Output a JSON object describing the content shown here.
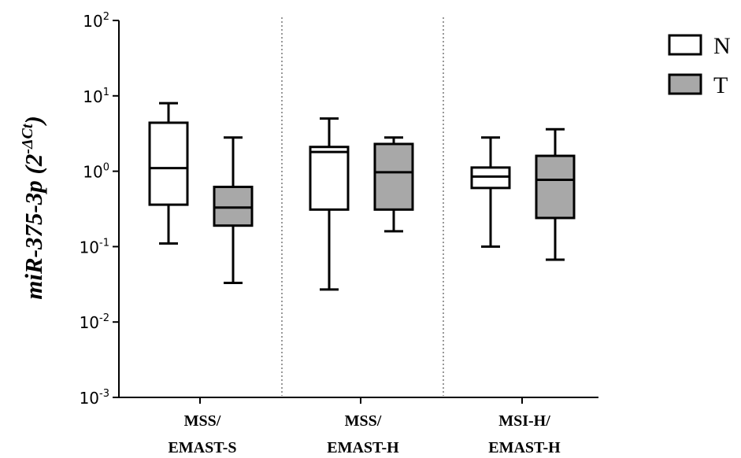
{
  "chart_data": {
    "type": "box",
    "y_scale": "log10",
    "ylim": [
      0.001,
      100
    ],
    "y_ticks": [
      {
        "value": 0.001,
        "base": "10",
        "exp": "-3"
      },
      {
        "value": 0.01,
        "base": "10",
        "exp": "-2"
      },
      {
        "value": 0.1,
        "base": "10",
        "exp": "-1"
      },
      {
        "value": 1,
        "base": "10",
        "exp": "0"
      },
      {
        "value": 10,
        "base": "10",
        "exp": "1"
      },
      {
        "value": 100,
        "base": "10",
        "exp": "2"
      }
    ],
    "ylabel": {
      "main": "miR-375-3p (2",
      "sup": "-ΔCt",
      "close": ")"
    },
    "categories": [
      {
        "line1": "MSS/",
        "line2": "EMAST-S"
      },
      {
        "line1": "MSS/",
        "line2": "EMAST-H"
      },
      {
        "line1": "MSI-H/",
        "line2": "EMAST-H"
      }
    ],
    "series": [
      {
        "name": "N",
        "fill": "#ffffff",
        "boxes": [
          {
            "min": 0.11,
            "q1": 0.36,
            "median": 1.1,
            "q3": 4.4,
            "max": 8.0
          },
          {
            "min": 0.027,
            "q1": 0.31,
            "median": 1.8,
            "q3": 2.1,
            "max": 5.0
          },
          {
            "min": 0.1,
            "q1": 0.6,
            "median": 0.85,
            "q3": 1.12,
            "max": 2.8
          }
        ]
      },
      {
        "name": "T",
        "fill": "#a8a8a8",
        "boxes": [
          {
            "min": 0.033,
            "q1": 0.19,
            "median": 0.33,
            "q3": 0.62,
            "max": 2.8
          },
          {
            "min": 0.16,
            "q1": 0.31,
            "median": 0.97,
            "q3": 2.3,
            "max": 2.8
          },
          {
            "min": 0.067,
            "q1": 0.24,
            "median": 0.77,
            "q3": 1.6,
            "max": 3.6
          }
        ]
      }
    ],
    "grid": false,
    "group_separators": "dotted vertical lines",
    "legend": {
      "placement": "top-right",
      "entries": [
        "N",
        "T"
      ]
    }
  }
}
